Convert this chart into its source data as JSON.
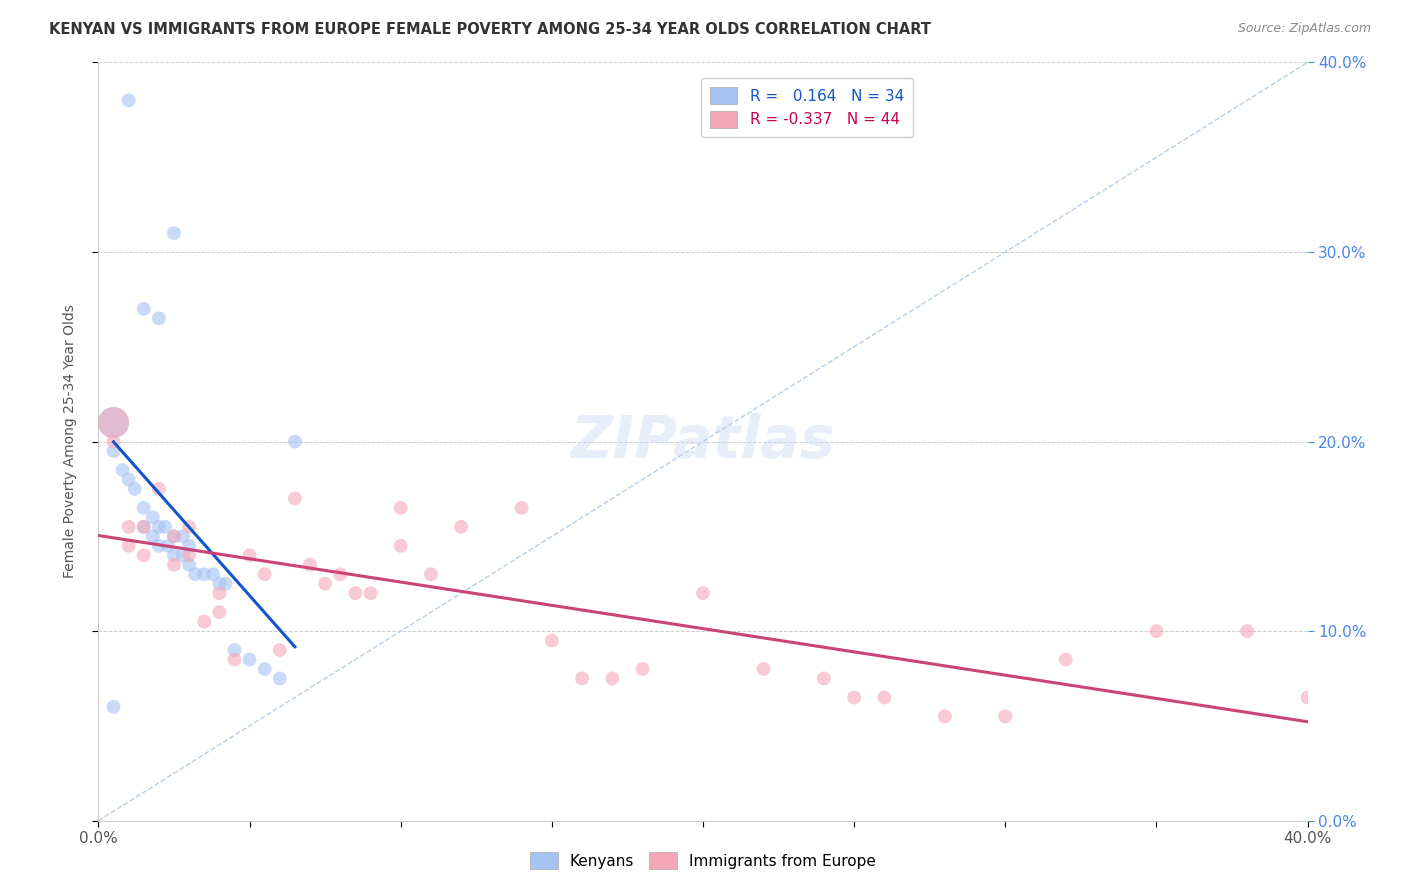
{
  "title": "KENYAN VS IMMIGRANTS FROM EUROPE FEMALE POVERTY AMONG 25-34 YEAR OLDS CORRELATION CHART",
  "source": "Source: ZipAtlas.com",
  "ylabel": "Female Poverty Among 25-34 Year Olds",
  "xlim": [
    0.0,
    0.4
  ],
  "ylim": [
    0.0,
    0.4
  ],
  "kenyan_R": 0.164,
  "kenyan_N": 34,
  "europe_R": -0.337,
  "europe_N": 44,
  "blue_color": "#a4c2f4",
  "pink_color": "#f4a7b9",
  "blue_line_color": "#1155cc",
  "pink_line_color": "#cc4477",
  "dashed_line_color": "#b8cfe8",
  "kenyan_x": [
    0.01,
    0.015,
    0.02,
    0.025,
    0.005,
    0.005,
    0.008,
    0.01,
    0.012,
    0.015,
    0.015,
    0.018,
    0.018,
    0.02,
    0.02,
    0.022,
    0.023,
    0.025,
    0.025,
    0.028,
    0.028,
    0.03,
    0.03,
    0.032,
    0.035,
    0.038,
    0.04,
    0.042,
    0.045,
    0.05,
    0.055,
    0.06,
    0.005,
    0.065
  ],
  "kenyan_y": [
    0.38,
    0.27,
    0.265,
    0.31,
    0.21,
    0.195,
    0.185,
    0.18,
    0.175,
    0.165,
    0.155,
    0.16,
    0.15,
    0.155,
    0.145,
    0.155,
    0.145,
    0.15,
    0.14,
    0.15,
    0.14,
    0.145,
    0.135,
    0.13,
    0.13,
    0.13,
    0.125,
    0.125,
    0.09,
    0.085,
    0.08,
    0.075,
    0.06,
    0.2
  ],
  "europe_x": [
    0.005,
    0.005,
    0.01,
    0.01,
    0.015,
    0.015,
    0.02,
    0.025,
    0.025,
    0.03,
    0.03,
    0.035,
    0.04,
    0.04,
    0.045,
    0.05,
    0.055,
    0.06,
    0.065,
    0.07,
    0.075,
    0.08,
    0.085,
    0.09,
    0.1,
    0.1,
    0.11,
    0.12,
    0.14,
    0.15,
    0.16,
    0.17,
    0.18,
    0.2,
    0.22,
    0.24,
    0.25,
    0.26,
    0.28,
    0.3,
    0.32,
    0.35,
    0.38,
    0.4
  ],
  "europe_y": [
    0.21,
    0.2,
    0.155,
    0.145,
    0.155,
    0.14,
    0.175,
    0.15,
    0.135,
    0.155,
    0.14,
    0.105,
    0.12,
    0.11,
    0.085,
    0.14,
    0.13,
    0.09,
    0.17,
    0.135,
    0.125,
    0.13,
    0.12,
    0.12,
    0.165,
    0.145,
    0.13,
    0.155,
    0.165,
    0.095,
    0.075,
    0.075,
    0.08,
    0.12,
    0.08,
    0.075,
    0.065,
    0.065,
    0.055,
    0.055,
    0.085,
    0.1,
    0.1,
    0.065
  ],
  "kenyan_sizes": [
    100,
    100,
    100,
    100,
    500,
    100,
    100,
    100,
    100,
    100,
    100,
    100,
    100,
    100,
    100,
    100,
    100,
    100,
    100,
    100,
    100,
    100,
    100,
    100,
    100,
    100,
    100,
    100,
    100,
    100,
    100,
    100,
    100,
    100
  ],
  "europe_sizes": [
    500,
    100,
    100,
    100,
    100,
    100,
    100,
    100,
    100,
    100,
    100,
    100,
    100,
    100,
    100,
    100,
    100,
    100,
    100,
    100,
    100,
    100,
    100,
    100,
    100,
    100,
    100,
    100,
    100,
    100,
    100,
    100,
    100,
    100,
    100,
    100,
    100,
    100,
    100,
    100,
    100,
    100,
    100,
    100
  ],
  "background_color": "#ffffff",
  "grid_color": "#cccccc",
  "right_axis_color": "#4a86e8",
  "title_color": "#333333",
  "source_color": "#888888",
  "legend_text_color_blue": "#1155cc",
  "legend_text_color_pink": "#cc0055"
}
